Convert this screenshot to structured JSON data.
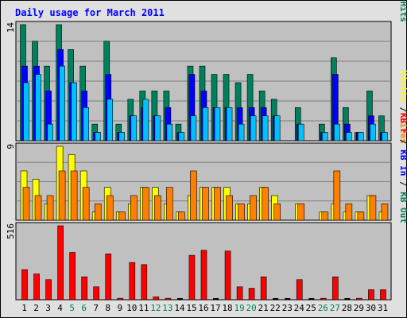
{
  "colors": {
    "frame_bg": "#e0e0e0",
    "plot_bg": "#c0c0c0",
    "grid": "#808080",
    "title": "#0000ff",
    "hits": "#00805c",
    "files": "#0000ff",
    "pages": "#00c0ff",
    "visits": "#ffff00",
    "sites": "#ff8000",
    "kbf": "#ff0000",
    "kbin": "#0000ff",
    "kbout": "#00805c",
    "weekend_label": "#00805c",
    "day_label": "#000000"
  },
  "chart_data": {
    "type": "bar",
    "title": "Daily usage for March 2011",
    "days": [
      "1",
      "2",
      "3",
      "4",
      "5",
      "6",
      "7",
      "8",
      "9",
      "10",
      "11",
      "12",
      "13",
      "14",
      "15",
      "16",
      "17",
      "18",
      "19",
      "20",
      "21",
      "22",
      "23",
      "24",
      "25",
      "26",
      "27",
      "28",
      "29",
      "30",
      "31"
    ],
    "weekend_days": [
      "5",
      "6",
      "12",
      "13",
      "19",
      "20",
      "26",
      "27"
    ],
    "panels": [
      {
        "name": "hits-files-pages",
        "ymax_label": "14",
        "ylim": [
          0,
          14
        ],
        "grid": true,
        "legend": [
          {
            "text": "Pages",
            "color_key": "pages"
          },
          {
            "text": " / ",
            "color_key": "day_label"
          },
          {
            "text": "Files",
            "color_key": "files"
          },
          {
            "text": " / ",
            "color_key": "day_label"
          },
          {
            "text": "Hits",
            "color_key": "hits"
          }
        ],
        "series": [
          {
            "name": "Hits",
            "color_key": "hits",
            "values": [
              14,
              12,
              9,
              14,
              11,
              9,
              2,
              12,
              2,
              5,
              6,
              6,
              6,
              2,
              9,
              9,
              8,
              8,
              7,
              8,
              6,
              5,
              0,
              4,
              0,
              2,
              10,
              4,
              1,
              6,
              3
            ]
          },
          {
            "name": "Files",
            "color_key": "files",
            "values": [
              9,
              9,
              6,
              11,
              7,
              6,
              1,
              8,
              1,
              3,
              4,
              3,
              4,
              1,
              8,
              6,
              4,
              4,
              4,
              4,
              4,
              3,
              0,
              2,
              0,
              1,
              8,
              2,
              1,
              3,
              1
            ]
          },
          {
            "name": "Pages",
            "color_key": "pages",
            "values": [
              7,
              8,
              2,
              9,
              7,
              4,
              1,
              5,
              1,
              3,
              5,
              3,
              2,
              1,
              3,
              4,
              4,
              4,
              2,
              3,
              3,
              3,
              0,
              2,
              0,
              1,
              2,
              1,
              1,
              2,
              1
            ]
          }
        ]
      },
      {
        "name": "visits-sites",
        "ymax_label": "9",
        "ylim": [
          0,
          9
        ],
        "grid": true,
        "legend": [
          {
            "text": "Visits",
            "color_key": "visits"
          },
          {
            "text": " / ",
            "color_key": "day_label"
          },
          {
            "text": "Sites",
            "color_key": "sites"
          }
        ],
        "series": [
          {
            "name": "Visits",
            "color_key": "visits",
            "values": [
              6,
              5,
              2,
              9,
              8,
              6,
              1,
              4,
              1,
              2,
              4,
              4,
              2,
              1,
              3,
              4,
              4,
              4,
              2,
              2,
              4,
              3,
              0,
              2,
              0,
              1,
              2,
              1,
              1,
              3,
              1
            ]
          },
          {
            "name": "Sites",
            "color_key": "sites",
            "values": [
              4,
              3,
              3,
              6,
              6,
              4,
              2,
              3,
              1,
              3,
              4,
              3,
              4,
              1,
              6,
              4,
              4,
              3,
              2,
              3,
              4,
              2,
              0,
              2,
              0,
              1,
              6,
              2,
              1,
              3,
              2
            ]
          }
        ]
      },
      {
        "name": "kbytes",
        "ymax_label": "516",
        "ylim": [
          0,
          516
        ],
        "grid": false,
        "legend": [
          {
            "text": "KB F",
            "color_key": "kbf"
          },
          {
            "text": " / ",
            "color_key": "day_label"
          },
          {
            "text": "KB In",
            "color_key": "kbin"
          },
          {
            "text": " / ",
            "color_key": "day_label"
          },
          {
            "text": "KB Out",
            "color_key": "kbout"
          }
        ],
        "series": [
          {
            "name": "KB F",
            "color_key": "kbf",
            "values": [
              210,
              180,
              140,
              516,
              330,
              160,
              90,
              320,
              10,
              260,
              245,
              20,
              10,
              0,
              310,
              345,
              0,
              340,
              90,
              80,
              160,
              0,
              0,
              140,
              0,
              10,
              160,
              0,
              10,
              70,
              70
            ]
          }
        ]
      }
    ]
  }
}
